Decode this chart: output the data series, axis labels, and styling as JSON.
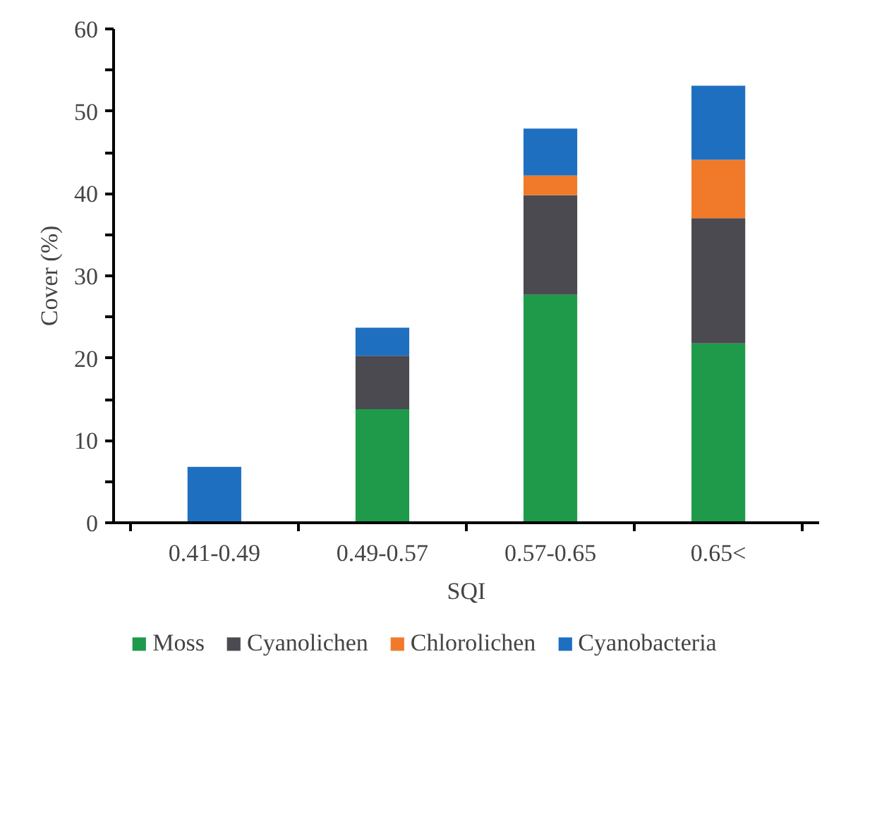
{
  "chart_data": {
    "type": "bar",
    "stacked": true,
    "xlabel": "SQI",
    "ylabel": "Cover (%)",
    "categories": [
      "0.41-0.49",
      "0.49-0.57",
      "0.57-0.65",
      "0.65<"
    ],
    "series": [
      {
        "name": "Moss",
        "color": "#1e9a4a",
        "values": [
          0,
          13.8,
          27.7,
          21.8
        ]
      },
      {
        "name": "Cyanolichen",
        "color": "#4a4a50",
        "values": [
          0,
          6.5,
          12.1,
          15.2
        ]
      },
      {
        "name": "Chlorolichen",
        "color": "#f07a2a",
        "values": [
          0,
          0,
          2.4,
          7.1
        ]
      },
      {
        "name": "Cyanobacteria",
        "color": "#1f6fc0",
        "values": [
          6.8,
          3.4,
          5.7,
          9.0
        ]
      }
    ],
    "ylim": [
      0,
      60
    ],
    "yticks": [
      0,
      {
        "value": 5,
        "label": null
      },
      10,
      {
        "value": 15,
        "label": null
      },
      20,
      {
        "value": 25,
        "label": null
      },
      30,
      {
        "value": 35,
        "label": null
      },
      40,
      {
        "value": 45,
        "label": null
      },
      50,
      {
        "value": 55,
        "label": null
      },
      60
    ],
    "grid": false,
    "legend": "bottom"
  }
}
